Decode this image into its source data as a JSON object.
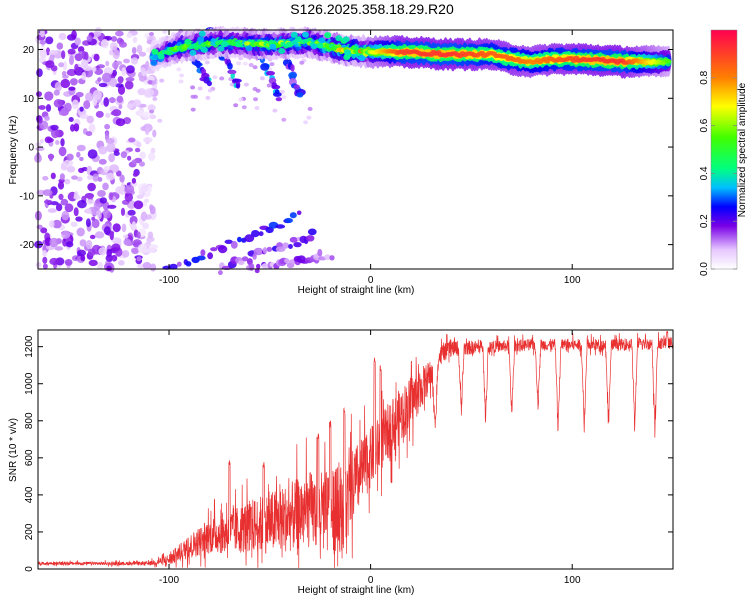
{
  "title": "S126.2025.358.18.29.R20",
  "chart_data": [
    {
      "type": "heatmap",
      "xlabel": "Height of straight line (km)",
      "ylabel": "Frequency (Hz)",
      "xlim": [
        -165,
        150
      ],
      "ylim": [
        -25,
        24
      ],
      "xticks": [
        -100,
        0,
        100
      ],
      "yticks": [
        20,
        10,
        0,
        -10,
        -20
      ],
      "xtick_labels": [
        "-100",
        "0",
        "100"
      ],
      "ytick_labels": [
        "20",
        "10",
        "0",
        "-10",
        "-20"
      ],
      "colorbar": {
        "label": "Normalized spectral amplitude",
        "range": [
          0.0,
          1.0
        ],
        "ticks": [
          0.0,
          0.2,
          0.4,
          0.6,
          0.8
        ],
        "tick_labels": [
          "0.0",
          "0.2",
          "0.4",
          "0.6",
          "0.8"
        ],
        "stops": [
          {
            "v": 0.0,
            "color": "#ffffff"
          },
          {
            "v": 0.08,
            "color": "#e6c8ff"
          },
          {
            "v": 0.18,
            "color": "#7a00e6"
          },
          {
            "v": 0.26,
            "color": "#0000ff"
          },
          {
            "v": 0.34,
            "color": "#00bfff"
          },
          {
            "v": 0.42,
            "color": "#00ff80"
          },
          {
            "v": 0.55,
            "color": "#40ff00"
          },
          {
            "v": 0.68,
            "color": "#ffff00"
          },
          {
            "v": 0.8,
            "color": "#ff8000"
          },
          {
            "v": 1.0,
            "color": "#ff0050"
          }
        ]
      },
      "features": {
        "noise_region_x": [
          -165,
          -107
        ],
        "noise_amplitude": [
          0.05,
          0.2
        ],
        "main_band": [
          {
            "x": -108,
            "y": 18.5,
            "amp": 0.35
          },
          {
            "x": -95,
            "y": 20.5,
            "amp": 0.5
          },
          {
            "x": -75,
            "y": 21.5,
            "amp": 0.45
          },
          {
            "x": -50,
            "y": 21.0,
            "amp": 0.55
          },
          {
            "x": -30,
            "y": 21.5,
            "amp": 0.5
          },
          {
            "x": -15,
            "y": 20.0,
            "amp": 0.6
          },
          {
            "x": 0,
            "y": 19.5,
            "amp": 0.65
          },
          {
            "x": 15,
            "y": 19.5,
            "amp": 0.9
          },
          {
            "x": 40,
            "y": 19.0,
            "amp": 0.92
          },
          {
            "x": 60,
            "y": 19.0,
            "amp": 0.85
          },
          {
            "x": 70,
            "y": 18.0,
            "amp": 0.85
          },
          {
            "x": 80,
            "y": 17.5,
            "amp": 0.8
          },
          {
            "x": 90,
            "y": 18.0,
            "amp": 0.85
          },
          {
            "x": 105,
            "y": 18.0,
            "amp": 0.9
          },
          {
            "x": 125,
            "y": 17.5,
            "amp": 0.92
          },
          {
            "x": 148,
            "y": 17.5,
            "amp": 0.55
          }
        ],
        "descending_streaks": [
          {
            "from": [
              -95,
              23
            ],
            "to": [
              -80,
              13
            ],
            "amp": 0.3
          },
          {
            "from": [
              -80,
              24
            ],
            "to": [
              -65,
              12
            ],
            "amp": 0.3
          },
          {
            "from": [
              -60,
              24
            ],
            "to": [
              -45,
              10
            ],
            "amp": 0.28
          },
          {
            "from": [
              -45,
              23
            ],
            "to": [
              -35,
              10
            ],
            "amp": 0.25
          }
        ],
        "lower_streaks": [
          {
            "from": [
              -100,
              -25
            ],
            "to": [
              -35,
              -14
            ],
            "amp": 0.22
          },
          {
            "from": [
              -75,
              -25
            ],
            "to": [
              -28,
              -18
            ],
            "amp": 0.18
          },
          {
            "from": [
              -60,
              -25
            ],
            "to": [
              -20,
              -22
            ],
            "amp": 0.15
          }
        ]
      }
    },
    {
      "type": "line",
      "xlabel": "Height of straight line (km)",
      "ylabel": "SNR (10 * v/v)",
      "xlim": [
        -165,
        150
      ],
      "ylim": [
        0,
        1290
      ],
      "xticks": [
        -100,
        0,
        100
      ],
      "yticks": [
        0,
        200,
        400,
        600,
        800,
        1000,
        1200
      ],
      "xtick_labels": [
        "-100",
        "0",
        "100"
      ],
      "ytick_labels": [
        "0",
        "200",
        "400",
        "600",
        "800",
        "1000",
        "1200"
      ],
      "series": [
        {
          "name": "SNR",
          "color": "#e83030",
          "baseline": [
            [
              -165,
              30
            ],
            [
              -110,
              30
            ],
            [
              -100,
              50
            ],
            [
              -90,
              120
            ],
            [
              -80,
              180
            ],
            [
              -70,
              200
            ],
            [
              -60,
              230
            ],
            [
              -50,
              250
            ],
            [
              -40,
              280
            ],
            [
              -30,
              320
            ],
            [
              -20,
              300
            ],
            [
              -12,
              350
            ],
            [
              -8,
              460
            ],
            [
              0,
              600
            ],
            [
              10,
              760
            ],
            [
              20,
              900
            ],
            [
              30,
              1050
            ],
            [
              35,
              1160
            ],
            [
              40,
              1190
            ],
            [
              60,
              1200
            ],
            [
              80,
              1210
            ],
            [
              100,
              1210
            ],
            [
              120,
              1210
            ],
            [
              150,
              1220
            ]
          ],
          "noise": [
            [
              -165,
              10
            ],
            [
              -110,
              12
            ],
            [
              -100,
              40
            ],
            [
              -80,
              120
            ],
            [
              -60,
              180
            ],
            [
              -30,
              260
            ],
            [
              -15,
              300
            ],
            [
              0,
              200
            ],
            [
              20,
              180
            ],
            [
              35,
              60
            ],
            [
              60,
              40
            ],
            [
              150,
              40
            ]
          ],
          "dips": [
            {
              "x": 32,
              "value": 650
            },
            {
              "x": 45,
              "value": 820
            },
            {
              "x": 57,
              "value": 750
            },
            {
              "x": 70,
              "value": 780
            },
            {
              "x": 83,
              "value": 820
            },
            {
              "x": 93,
              "value": 680
            },
            {
              "x": 106,
              "value": 700
            },
            {
              "x": 118,
              "value": 700
            },
            {
              "x": 131,
              "value": 700
            },
            {
              "x": 141,
              "value": 650
            }
          ],
          "spikes": [
            {
              "x": -70,
              "value": 590
            },
            {
              "x": -53,
              "value": 580
            },
            {
              "x": -26,
              "value": 740
            },
            {
              "x": -20,
              "value": 800
            },
            {
              "x": -13,
              "value": 870
            },
            {
              "x": 2,
              "value": 1150
            },
            {
              "x": 5,
              "value": 1100
            },
            {
              "x": 147,
              "value": 1290
            }
          ]
        }
      ]
    }
  ]
}
